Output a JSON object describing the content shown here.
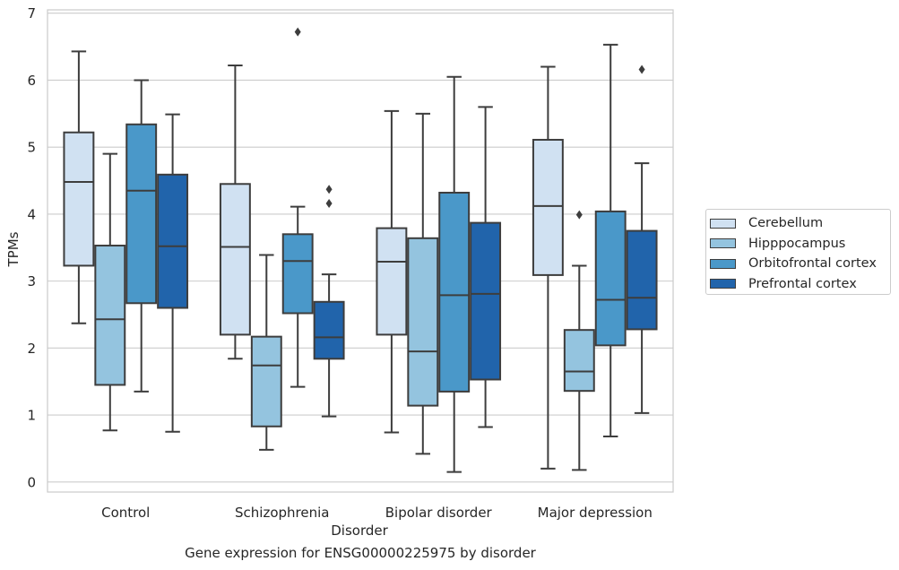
{
  "chart_data": {
    "type": "boxplot",
    "xlabel": "Disorder",
    "ylabel": "TPMs",
    "caption": "Gene expression for ENSG00000225975 by disorder",
    "ylim": [
      -0.15,
      7.05
    ],
    "yticks": [
      0,
      1,
      2,
      3,
      4,
      5,
      6,
      7
    ],
    "grid": "horizontal",
    "legend_position": "right",
    "categories": [
      "Control",
      "Schizophrenia",
      "Bipolar disorder",
      "Major depression"
    ],
    "series": [
      {
        "name": "Cerebellum",
        "color": "#d0e1f2",
        "boxes": [
          {
            "whisker_low": 2.37,
            "q1": 3.23,
            "median": 4.48,
            "q3": 5.22,
            "whisker_high": 6.43,
            "outliers": []
          },
          {
            "whisker_low": 1.84,
            "q1": 2.2,
            "median": 3.51,
            "q3": 4.45,
            "whisker_high": 6.22,
            "outliers": []
          },
          {
            "whisker_low": 0.74,
            "q1": 2.2,
            "median": 3.29,
            "q3": 3.79,
            "whisker_high": 5.54,
            "outliers": []
          },
          {
            "whisker_low": 0.2,
            "q1": 3.09,
            "median": 4.12,
            "q3": 5.11,
            "whisker_high": 6.2,
            "outliers": []
          }
        ]
      },
      {
        "name": "Hipppocampus",
        "color": "#94c4df",
        "boxes": [
          {
            "whisker_low": 0.77,
            "q1": 1.45,
            "median": 2.43,
            "q3": 3.53,
            "whisker_high": 4.9,
            "outliers": []
          },
          {
            "whisker_low": 0.48,
            "q1": 0.83,
            "median": 1.74,
            "q3": 2.17,
            "whisker_high": 3.39,
            "outliers": []
          },
          {
            "whisker_low": 0.42,
            "q1": 1.14,
            "median": 1.95,
            "q3": 3.64,
            "whisker_high": 5.5,
            "outliers": []
          },
          {
            "whisker_low": 0.18,
            "q1": 1.36,
            "median": 1.65,
            "q3": 2.27,
            "whisker_high": 3.23,
            "outliers": [
              3.99
            ]
          }
        ]
      },
      {
        "name": "Orbitofrontal cortex",
        "color": "#4a98c9",
        "boxes": [
          {
            "whisker_low": 1.35,
            "q1": 2.67,
            "median": 4.35,
            "q3": 5.34,
            "whisker_high": 6.0,
            "outliers": []
          },
          {
            "whisker_low": 1.42,
            "q1": 2.52,
            "median": 3.3,
            "q3": 3.7,
            "whisker_high": 4.11,
            "outliers": [
              6.72
            ]
          },
          {
            "whisker_low": 0.15,
            "q1": 1.35,
            "median": 2.79,
            "q3": 4.32,
            "whisker_high": 6.05,
            "outliers": []
          },
          {
            "whisker_low": 0.68,
            "q1": 2.04,
            "median": 2.72,
            "q3": 4.04,
            "whisker_high": 6.53,
            "outliers": []
          }
        ]
      },
      {
        "name": "Prefrontal cortex",
        "color": "#2164ab",
        "boxes": [
          {
            "whisker_low": 0.75,
            "q1": 2.6,
            "median": 3.52,
            "q3": 4.59,
            "whisker_high": 5.49,
            "outliers": []
          },
          {
            "whisker_low": 0.98,
            "q1": 1.84,
            "median": 2.16,
            "q3": 2.69,
            "whisker_high": 3.1,
            "outliers": [
              4.37,
              4.16
            ]
          },
          {
            "whisker_low": 0.82,
            "q1": 1.53,
            "median": 2.81,
            "q3": 3.87,
            "whisker_high": 5.6,
            "outliers": []
          },
          {
            "whisker_low": 1.03,
            "q1": 2.28,
            "median": 2.75,
            "q3": 3.75,
            "whisker_high": 4.76,
            "outliers": [
              6.16
            ]
          }
        ]
      }
    ]
  }
}
